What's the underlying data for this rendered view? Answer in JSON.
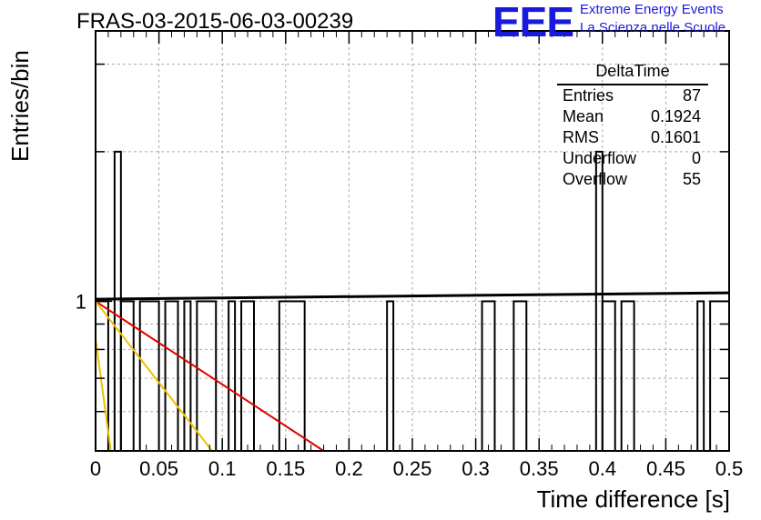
{
  "header": {
    "title": "FRAS-03-2015-06-03-00239",
    "logo": "EEE",
    "logo_line1": "Extreme Energy Events",
    "logo_line2": "La Scienza nelle Scuole"
  },
  "stats_box": {
    "name": "DeltaTime",
    "rows": [
      {
        "label": "Entries",
        "value": "87"
      },
      {
        "label": "Mean",
        "value": "0.1924"
      },
      {
        "label": "RMS",
        "value": "0.1601"
      },
      {
        "label": "Underflow",
        "value": "0"
      },
      {
        "label": "Overflow",
        "value": "55"
      }
    ]
  },
  "colors": {
    "histogram": "#000000",
    "red_fit": "#e00000",
    "yellow_fit": "#f0c000",
    "logo": "#1a1adc",
    "grid": "#aaaaaa"
  },
  "chart_data": {
    "type": "histogram",
    "xlabel": "Time difference [s]",
    "ylabel": "Entries/bin",
    "xlim": [
      0,
      0.5
    ],
    "ylim": [
      0.5,
      3.5
    ],
    "yscale": "log",
    "grid": true,
    "xticks": [
      "0",
      "0.05",
      "0.1",
      "0.15",
      "0.2",
      "0.25",
      "0.3",
      "0.35",
      "0.4",
      "0.45",
      "0.5"
    ],
    "yticks": [
      "1"
    ],
    "bin_width": 0.005,
    "bins": [
      {
        "x0": 0.0,
        "x1": 0.01,
        "count": 1
      },
      {
        "x0": 0.015,
        "x1": 0.02,
        "count": 2
      },
      {
        "x0": 0.02,
        "x1": 0.03,
        "count": 1
      },
      {
        "x0": 0.035,
        "x1": 0.05,
        "count": 1
      },
      {
        "x0": 0.055,
        "x1": 0.065,
        "count": 1
      },
      {
        "x0": 0.07,
        "x1": 0.075,
        "count": 1
      },
      {
        "x0": 0.08,
        "x1": 0.095,
        "count": 1
      },
      {
        "x0": 0.105,
        "x1": 0.11,
        "count": 1
      },
      {
        "x0": 0.115,
        "x1": 0.125,
        "count": 1
      },
      {
        "x0": 0.145,
        "x1": 0.165,
        "count": 1
      },
      {
        "x0": 0.23,
        "x1": 0.235,
        "count": 1
      },
      {
        "x0": 0.305,
        "x1": 0.315,
        "count": 1
      },
      {
        "x0": 0.33,
        "x1": 0.34,
        "count": 1
      },
      {
        "x0": 0.395,
        "x1": 0.4,
        "count": 2
      },
      {
        "x0": 0.4,
        "x1": 0.41,
        "count": 1
      },
      {
        "x0": 0.415,
        "x1": 0.425,
        "count": 1
      },
      {
        "x0": 0.475,
        "x1": 0.48,
        "count": 1
      },
      {
        "x0": 0.485,
        "x1": 0.5,
        "count": 1
      }
    ],
    "fits": [
      {
        "color": "black",
        "points": [
          [
            0.0,
            1.01
          ],
          [
            0.5,
            1.04
          ]
        ]
      },
      {
        "color": "red",
        "points": [
          [
            0.0,
            1.0
          ],
          [
            0.18,
            0.5
          ]
        ]
      },
      {
        "color": "yellow",
        "points": [
          [
            0.0,
            1.0
          ],
          [
            0.092,
            0.5
          ]
        ]
      },
      {
        "color": "yellow",
        "points": [
          [
            0.0,
            0.84
          ],
          [
            0.012,
            0.5
          ]
        ]
      }
    ]
  }
}
